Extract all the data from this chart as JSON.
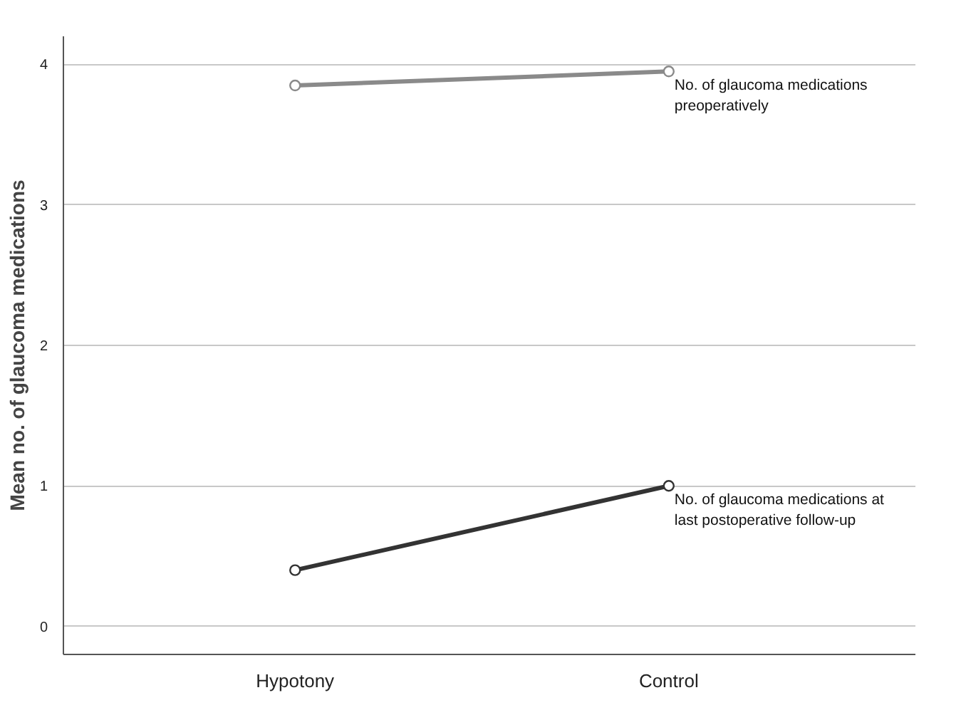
{
  "chart_data": {
    "type": "line",
    "ylabel": "Mean no. of glaucoma medications",
    "categories": [
      "Hypotony",
      "Control"
    ],
    "series": [
      {
        "name": "No. of glaucoma medications preoperatively",
        "color": "#8a8a8a",
        "values": [
          3.85,
          3.95
        ]
      },
      {
        "name": "No. of glaucoma medications at last postoperative follow-up",
        "color": "#333333",
        "values": [
          0.4,
          1.0
        ]
      }
    ],
    "ylim": [
      -0.2,
      4.2
    ],
    "yticks": [
      0,
      1,
      2,
      3,
      4
    ],
    "grid": "y",
    "marker": "circle",
    "line_style": "solid"
  }
}
